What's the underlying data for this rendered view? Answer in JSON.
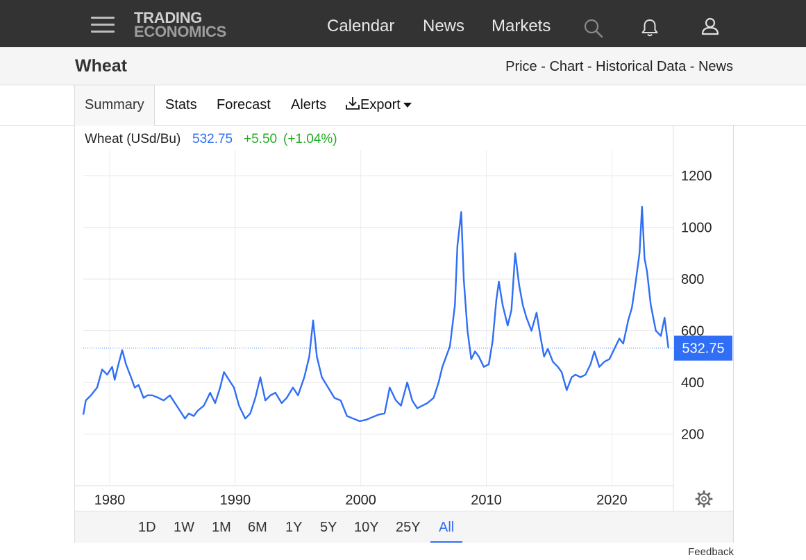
{
  "nav": {
    "logo_line1": "TRADING",
    "logo_line2": "ECONOMICS",
    "links": [
      "Calendar",
      "News",
      "Markets"
    ],
    "icons": [
      "menu-icon",
      "search-icon",
      "bell-icon",
      "user-icon"
    ]
  },
  "page": {
    "title": "Wheat",
    "crumbs": [
      "Price",
      "Chart",
      "Historical Data",
      "News"
    ],
    "separator": " - "
  },
  "tabs": {
    "summary": "Summary",
    "stats": "Stats",
    "forecast": "Forecast",
    "alerts": "Alerts",
    "export": "Export"
  },
  "legend": {
    "label": "Wheat (USd/Bu)",
    "price": "532.75",
    "change": "+5.50",
    "change_pct": "(+1.04%)"
  },
  "ranges": [
    "1D",
    "1W",
    "1M",
    "6M",
    "1Y",
    "5Y",
    "10Y",
    "25Y",
    "All"
  ],
  "active_range": "All",
  "feedback": "Feedback",
  "colors": {
    "line": "#2f6ef5",
    "up": "#22aa22",
    "price_tag": "#2f6ef5",
    "nav_bg": "#333333"
  },
  "chart_data": {
    "type": "line",
    "series": [
      {
        "name": "Wheat (USd/Bu)",
        "x": [
          1977.9,
          1978.1,
          1978.5,
          1979.0,
          1979.4,
          1979.8,
          1980.2,
          1980.4,
          1980.7,
          1981.0,
          1981.3,
          1981.7,
          1982.0,
          1982.3,
          1982.7,
          1983.0,
          1983.4,
          1983.9,
          1984.3,
          1984.8,
          1985.2,
          1985.6,
          1986.0,
          1986.3,
          1986.7,
          1987.0,
          1987.5,
          1988.0,
          1988.4,
          1988.8,
          1989.1,
          1989.5,
          1989.9,
          1990.3,
          1990.8,
          1991.2,
          1991.6,
          1992.0,
          1992.4,
          1992.8,
          1993.2,
          1993.7,
          1994.1,
          1994.6,
          1995.0,
          1995.5,
          1995.9,
          1996.2,
          1996.5,
          1996.9,
          1997.4,
          1997.9,
          1998.4,
          1998.9,
          1999.4,
          1999.9,
          2000.4,
          2000.9,
          2001.4,
          2001.9,
          2002.3,
          2002.8,
          2003.2,
          2003.7,
          2004.1,
          2004.5,
          2004.9,
          2005.3,
          2005.8,
          2006.2,
          2006.5,
          2006.8,
          2007.1,
          2007.5,
          2007.7,
          2008.0,
          2008.2,
          2008.5,
          2008.8,
          2009.1,
          2009.4,
          2009.8,
          2010.2,
          2010.5,
          2010.8,
          2011.0,
          2011.3,
          2011.7,
          2012.0,
          2012.3,
          2012.6,
          2012.9,
          2013.2,
          2013.6,
          2014.0,
          2014.3,
          2014.6,
          2014.9,
          2015.3,
          2015.7,
          2016.0,
          2016.4,
          2016.8,
          2017.1,
          2017.5,
          2017.9,
          2018.3,
          2018.6,
          2019.0,
          2019.4,
          2019.8,
          2020.2,
          2020.6,
          2020.9,
          2021.3,
          2021.6,
          2021.9,
          2022.2,
          2022.4,
          2022.6,
          2022.8,
          2023.1,
          2023.5,
          2023.9,
          2024.2,
          2024.5
        ],
        "y": [
          275,
          330,
          350,
          380,
          450,
          430,
          460,
          410,
          470,
          525,
          470,
          420,
          380,
          390,
          340,
          350,
          350,
          340,
          330,
          350,
          320,
          290,
          260,
          280,
          270,
          290,
          310,
          360,
          320,
          380,
          440,
          410,
          380,
          310,
          260,
          280,
          340,
          420,
          330,
          350,
          360,
          320,
          340,
          380,
          350,
          420,
          500,
          640,
          500,
          420,
          380,
          340,
          330,
          270,
          260,
          250,
          255,
          265,
          275,
          280,
          380,
          330,
          310,
          400,
          330,
          300,
          310,
          320,
          340,
          400,
          460,
          500,
          540,
          700,
          930,
          1060,
          800,
          600,
          490,
          520,
          500,
          460,
          470,
          560,
          720,
          790,
          700,
          620,
          680,
          900,
          780,
          700,
          650,
          600,
          670,
          580,
          500,
          530,
          480,
          460,
          440,
          370,
          420,
          430,
          420,
          430,
          470,
          520,
          460,
          480,
          490,
          530,
          570,
          550,
          640,
          690,
          790,
          900,
          1080,
          880,
          830,
          700,
          600,
          580,
          650,
          532.75
        ]
      }
    ],
    "last_value": 532.75,
    "xlim": [
      1977.9,
      2024.9
    ],
    "ylim": [
      0,
      1300
    ],
    "yticks": [
      200,
      400,
      600,
      800,
      1000,
      1200
    ],
    "xticks": [
      1980,
      1990,
      2000,
      2010,
      2020
    ],
    "grid": true,
    "legend_position": "top-left"
  }
}
